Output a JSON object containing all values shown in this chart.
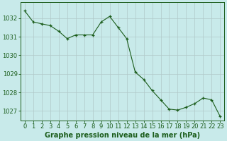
{
  "x": [
    0,
    1,
    2,
    3,
    4,
    5,
    6,
    7,
    8,
    9,
    10,
    11,
    12,
    13,
    14,
    15,
    16,
    17,
    18,
    19,
    20,
    21,
    22,
    23
  ],
  "y": [
    1032.4,
    1031.8,
    1031.7,
    1031.6,
    1031.3,
    1030.9,
    1031.1,
    1031.1,
    1031.1,
    1031.8,
    1032.1,
    1031.5,
    1030.9,
    1029.1,
    1028.7,
    1028.1,
    1027.6,
    1027.1,
    1027.05,
    1027.2,
    1027.4,
    1027.7,
    1027.6,
    1026.7
  ],
  "line_color": "#1a5c1a",
  "marker": "+",
  "bg_color": "#c8eaea",
  "grid_color": "#b0c8c8",
  "ylim": [
    1026.5,
    1032.85
  ],
  "yticks": [
    1027,
    1028,
    1029,
    1030,
    1031,
    1032
  ],
  "xlim": [
    -0.5,
    23.5
  ],
  "xticks": [
    0,
    1,
    2,
    3,
    4,
    5,
    6,
    7,
    8,
    9,
    10,
    11,
    12,
    13,
    14,
    15,
    16,
    17,
    18,
    19,
    20,
    21,
    22,
    23
  ],
  "xlabel": "Graphe pression niveau de la mer (hPa)",
  "tick_fontsize": 6.0,
  "xlabel_fontsize": 7.0,
  "tick_color": "#1a5c1a",
  "spine_color": "#1a5c1a",
  "line_width": 0.8,
  "marker_size": 3.5
}
